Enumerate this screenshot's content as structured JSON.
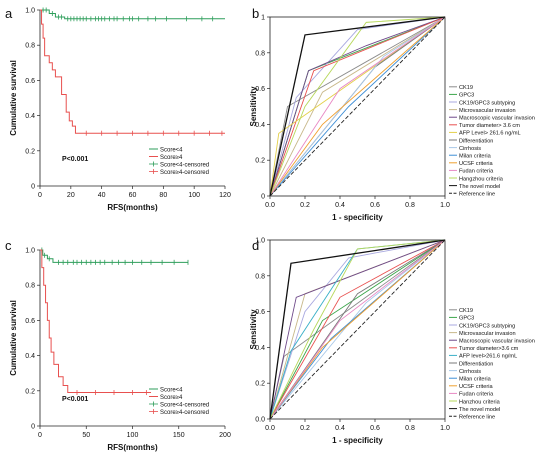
{
  "chart_data": [
    {
      "panel": "a",
      "type": "line",
      "subtype": "kaplan-meier",
      "xlabel": "RFS(months)",
      "ylabel": "Cumulative survival",
      "xlim": [
        0,
        120
      ],
      "ylim": [
        0,
        1.0
      ],
      "xticks": [
        "0",
        "20",
        "40",
        "60",
        "80",
        "100",
        "120"
      ],
      "yticks": [
        "0",
        "0.2",
        "0.4",
        "0.6",
        "0.8",
        "1.0"
      ],
      "annotation": "P<0.001",
      "legend_placement": "bottom-right",
      "legend": [
        "Score<4",
        "Score≥4",
        "Score<4-censored",
        "Score≥4-censored"
      ],
      "series": [
        {
          "name": "Score<4",
          "color": "#2e9e5b",
          "steps": [
            [
              0,
              1.0
            ],
            [
              6,
              0.98
            ],
            [
              10,
              0.96
            ],
            [
              16,
              0.95
            ],
            [
              120,
              0.95
            ]
          ],
          "censored": [
            2,
            4,
            8,
            12,
            14,
            18,
            20,
            22,
            24,
            26,
            28,
            30,
            33,
            36,
            38,
            40,
            42,
            45,
            48,
            50,
            54,
            58,
            60,
            64,
            70,
            75,
            82,
            95,
            105,
            112
          ]
        },
        {
          "name": "Score≥4",
          "color": "#e8504f",
          "steps": [
            [
              0,
              1.0
            ],
            [
              1,
              0.92
            ],
            [
              2,
              0.84
            ],
            [
              3,
              0.74
            ],
            [
              6,
              0.7
            ],
            [
              8,
              0.66
            ],
            [
              10,
              0.62
            ],
            [
              14,
              0.52
            ],
            [
              17,
              0.42
            ],
            [
              19,
              0.37
            ],
            [
              21,
              0.34
            ],
            [
              23,
              0.3
            ],
            [
              120,
              0.3
            ]
          ],
          "censored": [
            30,
            40,
            50,
            60,
            70,
            80,
            90,
            100,
            110,
            118
          ]
        }
      ]
    },
    {
      "panel": "b",
      "type": "line",
      "subtype": "roc",
      "xlabel": "1 - specificity",
      "ylabel": "Sensitivity",
      "xlim": [
        0,
        1.0
      ],
      "ylim": [
        0,
        1.0
      ],
      "xticks": [
        "0.0",
        "0.2",
        "0.4",
        "0.6",
        "0.8",
        "1.0"
      ],
      "yticks": [
        "0",
        "0.2",
        "0.4",
        "0.6",
        "0.8",
        "1"
      ],
      "legend_placement": "right",
      "series": [
        {
          "name": "CK19",
          "color": "#8b8b8b",
          "points": [
            [
              0,
              0
            ],
            [
              0.1,
              0.5
            ],
            [
              1,
              1
            ]
          ]
        },
        {
          "name": "GPC3",
          "color": "#3ca64b",
          "points": [
            [
              0,
              0
            ],
            [
              0.22,
              0.7
            ],
            [
              1,
              1
            ]
          ]
        },
        {
          "name": "CK19/GPC3 subtyping",
          "color": "#a8a8e0",
          "points": [
            [
              0,
              0
            ],
            [
              0.15,
              0.55
            ],
            [
              0.5,
              0.93
            ],
            [
              1,
              1
            ]
          ]
        },
        {
          "name": "Microvascular invasion",
          "color": "#c8b88a",
          "points": [
            [
              0,
              0
            ],
            [
              0.3,
              0.58
            ],
            [
              1,
              1
            ]
          ]
        },
        {
          "name": "Macroscopic vascular invasion",
          "color": "#6f4a8a",
          "points": [
            [
              0,
              0
            ],
            [
              0.22,
              0.7
            ],
            [
              0.55,
              0.84
            ],
            [
              1,
              1
            ]
          ]
        },
        {
          "name": "Tumor diameter> 3.6 cm",
          "color": "#e8504f",
          "points": [
            [
              0,
              0
            ],
            [
              0.25,
              0.7
            ],
            [
              1,
              1
            ]
          ]
        },
        {
          "name": "AFP Level> 261.6 ng/mL",
          "color": "#e3d04a",
          "points": [
            [
              0,
              0
            ],
            [
              0.05,
              0.35
            ],
            [
              1,
              1
            ]
          ]
        },
        {
          "name": "Differentiation",
          "color": "#7a7a7a",
          "points": [
            [
              0,
              0
            ],
            [
              0.6,
              0.72
            ],
            [
              1,
              1
            ]
          ]
        },
        {
          "name": "Cirrhosis",
          "color": "#a8c8e8",
          "points": [
            [
              0,
              0
            ],
            [
              0.65,
              0.78
            ],
            [
              1,
              1
            ]
          ]
        },
        {
          "name": "Milan criteria",
          "color": "#3f8fd6",
          "points": [
            [
              0,
              0
            ],
            [
              0.45,
              0.5
            ],
            [
              1,
              1
            ]
          ]
        },
        {
          "name": "UCSF criteria",
          "color": "#f0a030",
          "points": [
            [
              0,
              0
            ],
            [
              0.3,
              0.4
            ],
            [
              1,
              1
            ]
          ]
        },
        {
          "name": "Fudan criteria",
          "color": "#e889c4",
          "points": [
            [
              0,
              0
            ],
            [
              0.4,
              0.6
            ],
            [
              1,
              1
            ]
          ]
        },
        {
          "name": "Hangzhou criteria",
          "color": "#b7d85c",
          "points": [
            [
              0,
              0
            ],
            [
              0.2,
              0.5
            ],
            [
              0.55,
              0.97
            ],
            [
              1,
              1
            ]
          ]
        },
        {
          "name": "The novel model",
          "color": "#111111",
          "points": [
            [
              0,
              0
            ],
            [
              0.2,
              0.9
            ],
            [
              1,
              1
            ]
          ]
        },
        {
          "name": "Reference line",
          "color": "#222222",
          "dashed": true,
          "points": [
            [
              0,
              0
            ],
            [
              1,
              1
            ]
          ]
        }
      ]
    },
    {
      "panel": "c",
      "type": "line",
      "subtype": "kaplan-meier",
      "xlabel": "RFS(months)",
      "ylabel": "Cumulative survival",
      "xlim": [
        0,
        200
      ],
      "ylim": [
        0,
        1.0
      ],
      "xticks": [
        "0",
        "50",
        "100",
        "150",
        "200"
      ],
      "yticks": [
        "0",
        "0.2",
        "0.4",
        "0.6",
        "0.8",
        "1.0"
      ],
      "annotation": "P<0.001",
      "legend_placement": "bottom-right",
      "legend": [
        "Score<4",
        "Score≥4",
        "Score<4-censored",
        "Score≥4-censored"
      ],
      "series": [
        {
          "name": "Score<4",
          "color": "#2e9e5b",
          "steps": [
            [
              0,
              1.0
            ],
            [
              3,
              0.97
            ],
            [
              8,
              0.95
            ],
            [
              14,
              0.93
            ],
            [
              160,
              0.93
            ]
          ],
          "censored": [
            2,
            5,
            10,
            20,
            25,
            30,
            36,
            40,
            45,
            50,
            55,
            60,
            65,
            70,
            78,
            85,
            92,
            100,
            110,
            120,
            132,
            145,
            160
          ]
        },
        {
          "name": "Score≥4",
          "color": "#e8504f",
          "steps": [
            [
              0,
              1.0
            ],
            [
              2,
              0.9
            ],
            [
              4,
              0.8
            ],
            [
              6,
              0.7
            ],
            [
              8,
              0.6
            ],
            [
              10,
              0.5
            ],
            [
              12,
              0.42
            ],
            [
              15,
              0.35
            ],
            [
              20,
              0.28
            ],
            [
              25,
              0.23
            ],
            [
              30,
              0.19
            ],
            [
              120,
              0.19
            ]
          ],
          "censored": [
            40,
            60,
            80,
            100,
            115
          ]
        }
      ]
    },
    {
      "panel": "d",
      "type": "line",
      "subtype": "roc",
      "xlabel": "1 - specificity",
      "ylabel": "Sensitivity",
      "xlim": [
        0,
        1.0
      ],
      "ylim": [
        0,
        1.0
      ],
      "xticks": [
        "0.0",
        "0.2",
        "0.4",
        "0.6",
        "0.8",
        "1.0"
      ],
      "yticks": [
        "0.0",
        "0.2",
        "0.4",
        "0.6",
        "0.8",
        "1.0"
      ],
      "legend_placement": "right",
      "series": [
        {
          "name": "CK19",
          "color": "#8b8b8b",
          "points": [
            [
              0,
              0
            ],
            [
              0.08,
              0.35
            ],
            [
              1,
              1
            ]
          ]
        },
        {
          "name": "GPC3",
          "color": "#3ca64b",
          "points": [
            [
              0,
              0
            ],
            [
              0.3,
              0.55
            ],
            [
              1,
              1
            ]
          ]
        },
        {
          "name": "CK19/GPC3 subtyping",
          "color": "#a8a8e0",
          "points": [
            [
              0,
              0
            ],
            [
              0.2,
              0.6
            ],
            [
              0.45,
              0.9
            ],
            [
              1,
              1
            ]
          ]
        },
        {
          "name": "Microvascular invasion",
          "color": "#c8b88a",
          "points": [
            [
              0,
              0
            ],
            [
              0.2,
              0.7
            ],
            [
              1,
              1
            ]
          ]
        },
        {
          "name": "Macroscopic vascular invasion",
          "color": "#6f4a8a",
          "points": [
            [
              0,
              0
            ],
            [
              0.15,
              0.68
            ],
            [
              1,
              1
            ]
          ]
        },
        {
          "name": "Tumor diameter>3.6 cm",
          "color": "#e8504f",
          "points": [
            [
              0,
              0
            ],
            [
              0.4,
              0.68
            ],
            [
              1,
              1
            ]
          ]
        },
        {
          "name": "AFP level>261.6 ng/mL",
          "color": "#3ab0c8",
          "points": [
            [
              0,
              0
            ],
            [
              0.12,
              0.38
            ],
            [
              0.5,
              0.95
            ],
            [
              1,
              1
            ]
          ]
        },
        {
          "name": "Differentiation",
          "color": "#7a7a7a",
          "points": [
            [
              0,
              0
            ],
            [
              0.5,
              0.7
            ],
            [
              1,
              1
            ]
          ]
        },
        {
          "name": "Cirrhosis",
          "color": "#a8c8e8",
          "points": [
            [
              0,
              0
            ],
            [
              0.55,
              0.65
            ],
            [
              1,
              1
            ]
          ]
        },
        {
          "name": "Milan criteria",
          "color": "#3f8fd6",
          "points": [
            [
              0,
              0
            ],
            [
              0.35,
              0.45
            ],
            [
              1,
              1
            ]
          ]
        },
        {
          "name": "UCSF criteria",
          "color": "#f0a030",
          "points": [
            [
              0,
              0
            ],
            [
              0.3,
              0.4
            ],
            [
              1,
              1
            ]
          ]
        },
        {
          "name": "Fudan criteria",
          "color": "#e889c4",
          "points": [
            [
              0,
              0
            ],
            [
              0.4,
              0.55
            ],
            [
              1,
              1
            ]
          ]
        },
        {
          "name": "Hanzhou criteria",
          "color": "#b7d85c",
          "points": [
            [
              0,
              0
            ],
            [
              0.25,
              0.5
            ],
            [
              0.5,
              0.95
            ],
            [
              1,
              1
            ]
          ]
        },
        {
          "name": "The novel model",
          "color": "#111111",
          "points": [
            [
              0,
              0
            ],
            [
              0.12,
              0.87
            ],
            [
              1,
              1
            ]
          ]
        },
        {
          "name": "Reference line",
          "color": "#222222",
          "dashed": true,
          "points": [
            [
              0,
              0
            ],
            [
              1,
              1
            ]
          ]
        }
      ]
    }
  ]
}
